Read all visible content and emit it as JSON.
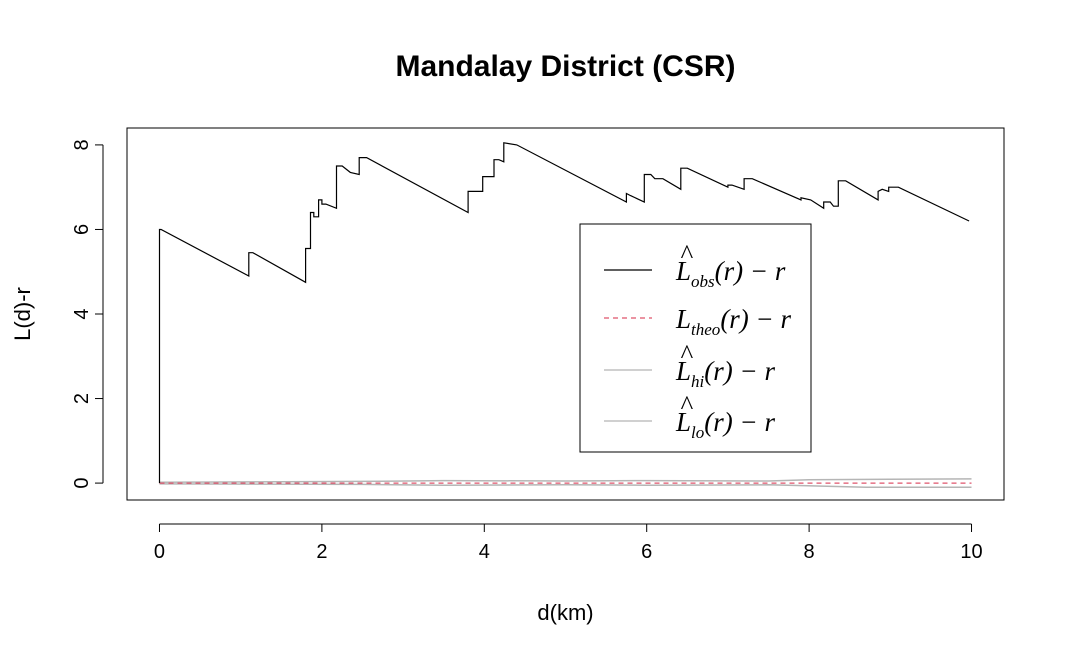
{
  "chart_data": {
    "type": "line",
    "title": "Mandalay District (CSR)",
    "xlabel": "d(km)",
    "ylabel": "L(d)-r",
    "xlim": [
      -0.4,
      10.4
    ],
    "ylim": [
      -0.4,
      8.4
    ],
    "xticks": [
      0,
      2,
      4,
      6,
      8,
      10
    ],
    "yticks": [
      0,
      2,
      4,
      6,
      8
    ],
    "legend_position": "right",
    "series": [
      {
        "name": "L̂obs(r) − r",
        "legend": {
          "main": "L",
          "hat": true,
          "sub": "obs",
          "rest": "(r) − r"
        },
        "color": "#000000",
        "dash": "",
        "x": [
          0,
          0,
          0.02,
          1.1,
          1.1,
          1.15,
          1.8,
          1.8,
          1.86,
          1.86,
          1.9,
          1.9,
          1.96,
          1.96,
          2.0,
          2.0,
          2.05,
          2.18,
          2.18,
          2.25,
          2.35,
          2.46,
          2.46,
          2.55,
          3.8,
          3.8,
          3.88,
          3.98,
          3.98,
          4.05,
          4.12,
          4.12,
          4.18,
          4.24,
          4.24,
          4.4,
          5.75,
          5.75,
          5.8,
          5.97,
          5.97,
          6.05,
          6.1,
          6.2,
          6.42,
          6.42,
          6.5,
          7.0,
          7.0,
          7.05,
          7.2,
          7.2,
          7.3,
          7.9,
          7.9,
          8.02,
          8.18,
          8.18,
          8.26,
          8.3,
          8.36,
          8.36,
          8.45,
          8.85,
          8.85,
          8.9,
          8.98,
          8.98,
          9.1,
          9.97
        ],
        "y": [
          0,
          6.0,
          6.0,
          4.9,
          5.45,
          5.45,
          4.75,
          5.55,
          5.55,
          6.4,
          6.4,
          6.3,
          6.3,
          6.7,
          6.7,
          6.6,
          6.6,
          6.5,
          7.5,
          7.5,
          7.35,
          7.3,
          7.7,
          7.7,
          6.4,
          6.9,
          6.9,
          6.9,
          7.25,
          7.25,
          7.25,
          7.65,
          7.65,
          7.6,
          8.05,
          8.0,
          6.65,
          6.85,
          6.8,
          6.65,
          7.3,
          7.3,
          7.2,
          7.2,
          6.95,
          7.45,
          7.45,
          7.0,
          7.05,
          7.05,
          6.95,
          7.2,
          7.2,
          6.7,
          6.75,
          6.7,
          6.5,
          6.65,
          6.65,
          6.55,
          6.55,
          7.15,
          7.15,
          6.7,
          6.9,
          6.95,
          6.9,
          7.0,
          7.0,
          6.2
        ]
      },
      {
        "name": "Ltheo(r) − r",
        "legend": {
          "main": "L",
          "hat": false,
          "sub": "theo",
          "rest": "(r) − r"
        },
        "color": "#df536b",
        "dash": "5,4",
        "x": [
          0,
          10
        ],
        "y": [
          0,
          0
        ]
      },
      {
        "name": "L̂hi(r) − r",
        "legend": {
          "main": "L",
          "hat": true,
          "sub": "hi",
          "rest": "(r) − r"
        },
        "color": "#b5b5b5",
        "dash": "",
        "x": [
          0,
          2.5,
          3.5,
          5,
          6,
          7.5,
          8.0,
          10
        ],
        "y": [
          0.02,
          0.04,
          0.06,
          0.05,
          0.06,
          0.05,
          0.08,
          0.1
        ]
      },
      {
        "name": "L̂lo(r) − r",
        "legend": {
          "main": "L",
          "hat": true,
          "sub": "lo",
          "rest": "(r) − r"
        },
        "color": "#b5b5b5",
        "dash": "",
        "x": [
          0,
          2.5,
          3.5,
          5,
          6,
          7.5,
          8.7,
          10
        ],
        "y": [
          -0.02,
          -0.03,
          -0.05,
          -0.04,
          -0.05,
          -0.04,
          -0.1,
          -0.1
        ]
      }
    ]
  }
}
